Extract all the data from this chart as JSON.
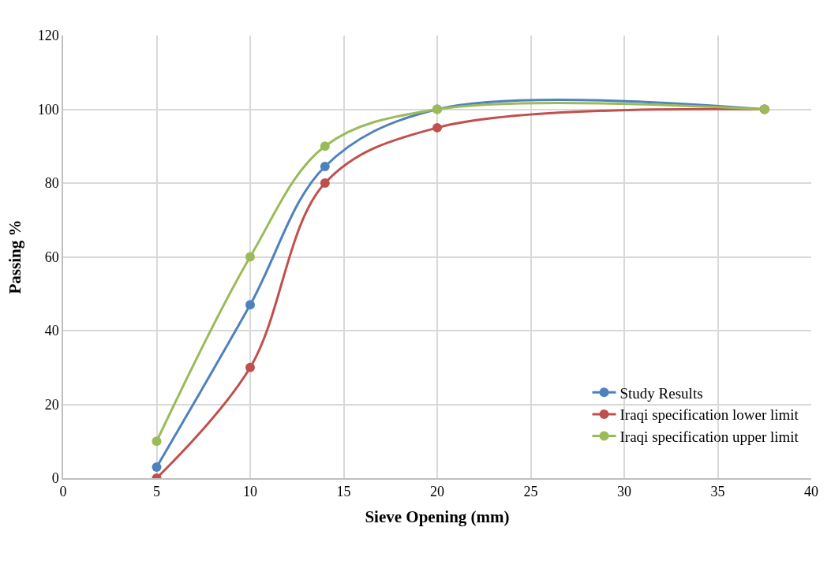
{
  "chart_data": {
    "type": "line",
    "xlabel": "Sieve Opening (mm)",
    "ylabel": "Passing %",
    "x": [
      5,
      10,
      14,
      20,
      37.5
    ],
    "series": [
      {
        "name": "Study Results",
        "color": "#4f81bd",
        "values": [
          3,
          47,
          84.5,
          100,
          100
        ]
      },
      {
        "name": "Iraqi specification lower limit",
        "color": "#c0504d",
        "values": [
          0,
          30,
          80,
          95,
          100
        ]
      },
      {
        "name": "Iraqi specification upper limit",
        "color": "#9bbb59",
        "values": [
          10,
          60,
          90,
          100,
          100
        ]
      }
    ],
    "xlim": [
      0,
      40
    ],
    "xticks": [
      0,
      5,
      10,
      15,
      20,
      25,
      30,
      35,
      40
    ],
    "ylim": [
      0,
      120
    ],
    "yticks": [
      0,
      20,
      40,
      60,
      80,
      100,
      120
    ],
    "grid": true,
    "legend": "bottom right",
    "marker": "circle",
    "line_style": "solid"
  }
}
